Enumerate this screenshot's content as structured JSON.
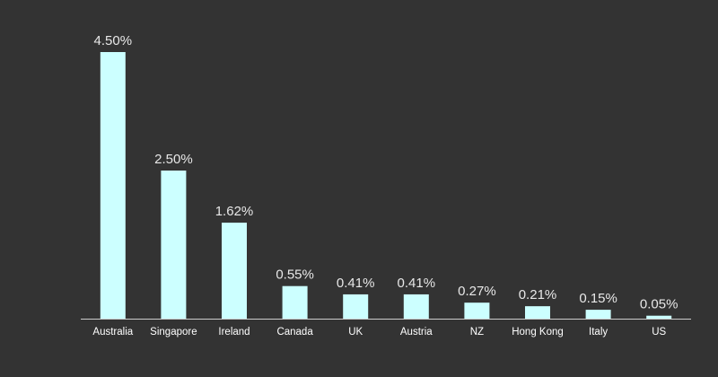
{
  "chart_data": {
    "type": "bar",
    "categories": [
      "Australia",
      "Singapore",
      "Ireland",
      "Canada",
      "UK",
      "Austria",
      "NZ",
      "Hong Kong",
      "Italy",
      "US"
    ],
    "values": [
      4.5,
      2.5,
      1.62,
      0.55,
      0.41,
      0.41,
      0.27,
      0.21,
      0.15,
      0.05
    ],
    "value_labels": [
      "4.50%",
      "2.50%",
      "1.62%",
      "0.55%",
      "0.41%",
      "0.41%",
      "0.27%",
      "0.21%",
      "0.15%",
      "0.05%"
    ],
    "color": "#ccffff",
    "ylim": [
      0,
      4.5
    ]
  }
}
